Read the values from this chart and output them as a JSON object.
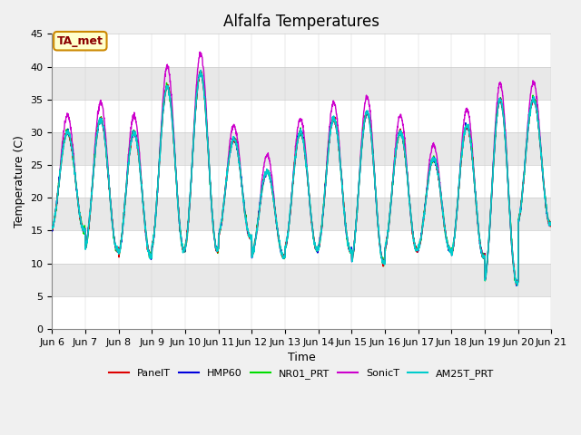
{
  "title": "Alfalfa Temperatures",
  "xlabel": "Time",
  "ylabel": "Temperature (C)",
  "ylim": [
    0,
    45
  ],
  "annotation_text": "TA_met",
  "legend_entries": [
    "PanelT",
    "HMP60",
    "NR01_PRT",
    "SonicT",
    "AM25T_PRT"
  ],
  "line_colors": [
    "#dd0000",
    "#0000dd",
    "#00dd00",
    "#cc00cc",
    "#00cccc"
  ],
  "line_widths": [
    1.0,
    1.0,
    1.0,
    1.0,
    1.2
  ],
  "xtick_labels": [
    "Jun 6",
    "Jun 7",
    "Jun 8",
    "Jun 9",
    "Jun 10",
    "Jun 11",
    "Jun 12",
    "Jun 13",
    "Jun 14",
    "Jun 15",
    "Jun 16",
    "Jun 17",
    "Jun 18",
    "Jun 19",
    "Jun 20",
    "Jun 21"
  ],
  "background_color": "#f0f0f0",
  "plot_bg_color": "#e8e8e8",
  "band_colors": [
    "#ffffff",
    "#e8e8e8"
  ],
  "title_fontsize": 12,
  "axis_label_fontsize": 9,
  "tick_fontsize": 8,
  "daily_max": [
    30,
    32,
    30,
    37,
    39,
    29,
    24,
    30,
    32,
    33,
    30,
    26,
    31,
    35,
    35
  ],
  "daily_min": [
    15,
    12,
    11,
    12,
    12,
    14,
    11,
    12,
    12,
    10,
    12,
    12,
    11,
    7,
    16
  ],
  "sonic_boost": [
    2.5,
    2.5,
    2.5,
    3.0,
    3.0,
    2.0,
    2.5,
    2.0,
    2.5,
    2.5,
    2.5,
    2.0,
    2.5,
    2.5,
    2.5
  ]
}
